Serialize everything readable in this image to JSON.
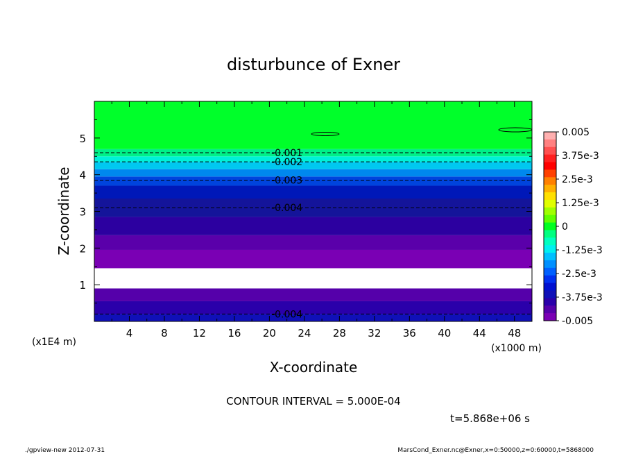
{
  "chart_data": {
    "type": "heatmap",
    "title": "disturbunce of Exner",
    "xlabel": "X-coordinate",
    "ylabel": "Z-coordinate",
    "x_unit_left": "(x1E4 m)",
    "x_unit_right": "(x1000 m)",
    "xlim": [
      0,
      50
    ],
    "ylim": [
      0,
      6
    ],
    "x_ticks": [
      4,
      8,
      12,
      16,
      20,
      24,
      28,
      32,
      36,
      40,
      44,
      48
    ],
    "x_tick_labels": [
      "4",
      "8",
      "12",
      "16",
      "20",
      "24",
      "28",
      "32",
      "36",
      "40",
      "44",
      "48"
    ],
    "y_ticks": [
      1,
      2,
      3,
      4,
      5
    ],
    "y_tick_labels": [
      "1",
      "2",
      "3",
      "4",
      "5"
    ],
    "bands": [
      {
        "z0": 0.0,
        "z1": 0.2,
        "color": "#1010b8"
      },
      {
        "z0": 0.2,
        "z1": 0.55,
        "color": "#2a00aa"
      },
      {
        "z0": 0.55,
        "z1": 0.9,
        "color": "#5500aa"
      },
      {
        "z0": 0.9,
        "z1": 1.45,
        "color": "#ffffff"
      },
      {
        "z0": 1.45,
        "z1": 1.95,
        "color": "#7a00b4"
      },
      {
        "z0": 1.95,
        "z1": 2.35,
        "color": "#5a00aa"
      },
      {
        "z0": 2.35,
        "z1": 2.85,
        "color": "#2c00a0"
      },
      {
        "z0": 2.85,
        "z1": 3.35,
        "color": "#14149a"
      },
      {
        "z0": 3.35,
        "z1": 3.7,
        "color": "#0018b8"
      },
      {
        "z0": 3.7,
        "z1": 3.95,
        "color": "#0044dd"
      },
      {
        "z0": 3.95,
        "z1": 4.15,
        "color": "#0088ee"
      },
      {
        "z0": 4.15,
        "z1": 4.35,
        "color": "#00c8f0"
      },
      {
        "z0": 4.35,
        "z1": 4.5,
        "color": "#00f0d8"
      },
      {
        "z0": 4.5,
        "z1": 4.7,
        "color": "#00f088"
      },
      {
        "z0": 4.7,
        "z1": 6.0,
        "color": "#00ff2a"
      }
    ],
    "contours": [
      {
        "z": 4.6,
        "label": "-0.001",
        "label_x": 22
      },
      {
        "z": 4.35,
        "label": "-0.002",
        "label_x": 22
      },
      {
        "z": 3.85,
        "label": "-0.003",
        "label_x": 22
      },
      {
        "z": 3.1,
        "label": "-0.004",
        "label_x": 22
      },
      {
        "z": 0.2,
        "label": "-0.004",
        "label_x": 22
      }
    ],
    "colorbar": {
      "labels": [
        "0.005",
        "3.75e-3",
        "2.5e-3",
        "1.25e-3",
        "0",
        "-1.25e-3",
        "-2.5e-3",
        "-3.75e-3",
        "-0.005"
      ],
      "colors": [
        "#ffb0b0",
        "#ff8080",
        "#ff5050",
        "#ff2020",
        "#ff0000",
        "#ff4000",
        "#ff8000",
        "#ffb000",
        "#ffe000",
        "#e0ff00",
        "#a0ff00",
        "#60ff00",
        "#00ff20",
        "#00ff80",
        "#00ffc0",
        "#00f0f0",
        "#00c0ff",
        "#0090ff",
        "#0060ff",
        "#0030f0",
        "#0010d0",
        "#1010b8",
        "#2a00aa",
        "#5500aa",
        "#7a00b4"
      ]
    },
    "contour_interval_text": "CONTOUR INTERVAL = 5.000E-04",
    "time_text": "t=5.868e+06 s"
  },
  "footer": {
    "left": "./gpview-new   2012-07-31",
    "right": "MarsCond_Exner.nc@Exner,x=0:50000,z=0:60000,t=5868000"
  }
}
